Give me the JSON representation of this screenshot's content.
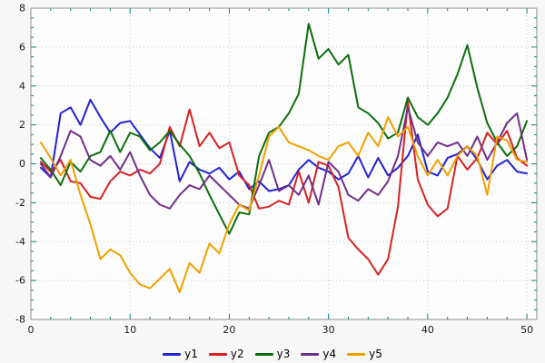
{
  "colors": {
    "figure_background": "#f7f7f7",
    "plot_background": "#fdfdfd",
    "grid": "#c9c9c9",
    "border": "#8f8f8f",
    "tick": "#008080",
    "tick_label": "#1a1a1a",
    "legend_text": "#000000"
  },
  "chart_data": {
    "type": "line",
    "title": "",
    "xlabel": "",
    "ylabel": "",
    "xlim": [
      0,
      51
    ],
    "ylim": [
      -8,
      8
    ],
    "x_major_ticks": [
      0,
      10,
      20,
      30,
      40,
      50
    ],
    "y_major_ticks": [
      -8,
      -6,
      -4,
      -2,
      0,
      2,
      4,
      6,
      8
    ],
    "x_minor_step": 2,
    "y_minor_step": 0.5,
    "grid": true,
    "legend_position": "bottom",
    "x": [
      1,
      2,
      3,
      4,
      5,
      6,
      7,
      8,
      9,
      10,
      11,
      12,
      13,
      14,
      15,
      16,
      17,
      18,
      19,
      20,
      21,
      22,
      23,
      24,
      25,
      26,
      27,
      28,
      29,
      30,
      31,
      32,
      33,
      34,
      35,
      36,
      37,
      38,
      39,
      40,
      41,
      42,
      43,
      44,
      45,
      46,
      47,
      48,
      49,
      50
    ],
    "series": [
      {
        "name": "y1",
        "color": "#2222d4",
        "values": [
          -0.2,
          -0.7,
          2.6,
          2.9,
          2.0,
          3.3,
          2.4,
          1.6,
          2.1,
          2.2,
          1.5,
          0.8,
          0.3,
          1.7,
          -0.9,
          0.1,
          -0.3,
          -0.5,
          -0.2,
          -0.8,
          -0.4,
          -1.3,
          -0.9,
          -1.4,
          -1.3,
          -1.1,
          -0.3,
          0.2,
          -0.2,
          -0.4,
          -0.8,
          -0.5,
          0.4,
          -0.7,
          0.3,
          -0.6,
          -0.2,
          0.4,
          1.5,
          -0.4,
          -0.6,
          0.3,
          0.5,
          0.9,
          0.2,
          -0.8,
          -0.1,
          0.2,
          -0.4,
          -0.5
        ]
      },
      {
        "name": "y2",
        "color": "#d62222",
        "values": [
          0.1,
          -0.4,
          0.2,
          -0.9,
          -1.0,
          -1.7,
          -1.8,
          -0.9,
          -0.4,
          -0.6,
          -0.3,
          -0.5,
          0.0,
          1.9,
          0.9,
          2.8,
          0.9,
          1.6,
          0.8,
          1.1,
          -0.6,
          -1.1,
          -2.3,
          -2.2,
          -1.9,
          -2.1,
          -0.4,
          -2.0,
          0.1,
          -0.1,
          -1.2,
          -3.8,
          -4.4,
          -4.9,
          -5.7,
          -4.9,
          -2.2,
          3.2,
          -0.8,
          -2.1,
          -2.7,
          -2.3,
          0.4,
          -0.3,
          0.3,
          1.6,
          1.0,
          1.7,
          0.3,
          -0.1
        ]
      },
      {
        "name": "y3",
        "color": "#0b6e0b",
        "values": [
          0.3,
          -0.3,
          -1.1,
          0.1,
          -0.4,
          0.4,
          0.6,
          1.7,
          0.6,
          1.6,
          1.4,
          0.7,
          1.1,
          1.7,
          1.0,
          0.4,
          -0.5,
          -1.6,
          -2.6,
          -3.6,
          -2.5,
          -2.6,
          0.4,
          1.6,
          1.9,
          2.6,
          3.6,
          7.2,
          5.4,
          5.9,
          5.1,
          5.6,
          2.9,
          2.6,
          2.1,
          1.3,
          1.6,
          3.4,
          2.4,
          2.0,
          2.6,
          3.4,
          4.6,
          6.1,
          3.9,
          2.1,
          1.1,
          0.4,
          0.9,
          2.2
        ]
      },
      {
        "name": "y4",
        "color": "#702f8a",
        "values": [
          0.0,
          -0.7,
          0.4,
          1.7,
          1.4,
          0.2,
          -0.1,
          0.4,
          -0.3,
          0.6,
          -0.6,
          -1.6,
          -2.1,
          -2.3,
          -1.6,
          -1.1,
          -1.3,
          -0.6,
          -1.1,
          -1.6,
          -2.1,
          -2.3,
          -1.1,
          0.2,
          -1.4,
          -1.1,
          -1.6,
          -0.6,
          -2.1,
          0.1,
          -0.4,
          -1.6,
          -1.9,
          -1.3,
          -1.6,
          -0.9,
          0.4,
          2.9,
          1.1,
          0.4,
          1.1,
          0.9,
          1.1,
          0.4,
          1.4,
          0.2,
          1.1,
          2.1,
          2.6,
          0.2
        ]
      },
      {
        "name": "y5",
        "color": "#f0a000",
        "values": [
          1.1,
          0.3,
          -0.6,
          0.2,
          -1.6,
          -3.1,
          -4.9,
          -4.4,
          -4.7,
          -5.6,
          -6.2,
          -6.4,
          -5.9,
          -5.4,
          -6.6,
          -5.1,
          -5.6,
          -4.1,
          -4.6,
          -3.1,
          -2.1,
          -2.4,
          -0.6,
          1.4,
          1.9,
          1.1,
          0.9,
          0.7,
          0.4,
          0.2,
          0.9,
          1.1,
          0.4,
          1.6,
          0.9,
          2.4,
          1.4,
          1.9,
          0.4,
          -0.6,
          0.2,
          -0.6,
          0.4,
          0.9,
          0.4,
          -1.6,
          1.4,
          1.2,
          0.2,
          0.1
        ]
      }
    ]
  }
}
